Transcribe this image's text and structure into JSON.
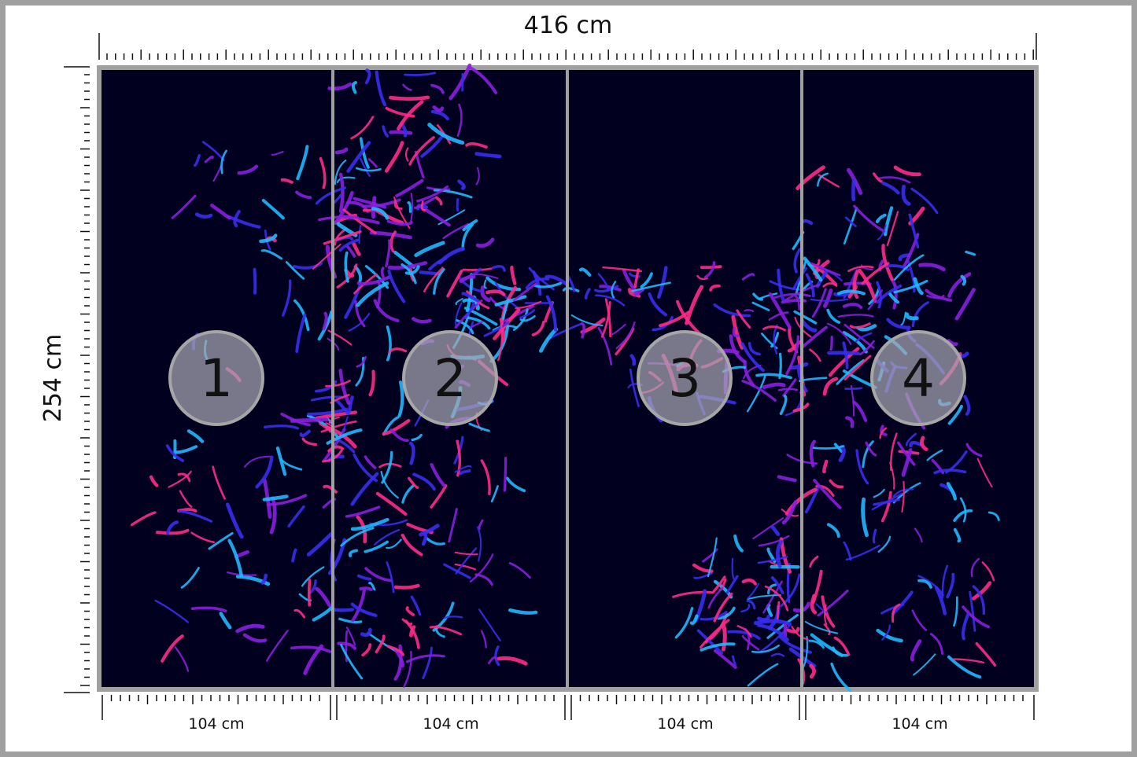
{
  "dimensions": {
    "width_label": "416 cm",
    "height_label": "254 cm"
  },
  "panels": [
    {
      "number": "1",
      "width_label": "104 cm"
    },
    {
      "number": "2",
      "width_label": "104 cm"
    },
    {
      "number": "3",
      "width_label": "104 cm"
    },
    {
      "number": "4",
      "width_label": "104 cm"
    }
  ],
  "colors": {
    "background": "#02001f",
    "frame": "#a0a0a0",
    "badge": "#a8a6b4",
    "neon_pink": "#ff2a8a",
    "neon_cyan": "#1fb8ff",
    "neon_blue": "#3a2cf0",
    "neon_purple": "#8a1ee0"
  }
}
